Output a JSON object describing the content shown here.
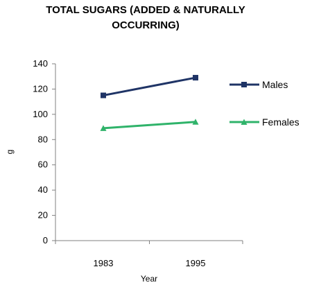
{
  "chart_data": {
    "type": "line",
    "title_lines": [
      "TOTAL SUGARS (ADDED & NATURALLY",
      "OCCURRING)"
    ],
    "xlabel": "Year",
    "ylabel": "g",
    "categories": [
      "1983",
      "1995"
    ],
    "ylim": [
      0,
      140
    ],
    "yticks": [
      0,
      20,
      40,
      60,
      80,
      100,
      120,
      140
    ],
    "grid": false,
    "legend_position": "right",
    "series": [
      {
        "name": "Males",
        "values": [
          115,
          129
        ],
        "color": "#1f3466",
        "marker": "square"
      },
      {
        "name": "Females",
        "values": [
          89,
          94
        ],
        "color": "#2fb36a",
        "marker": "triangle"
      }
    ]
  }
}
